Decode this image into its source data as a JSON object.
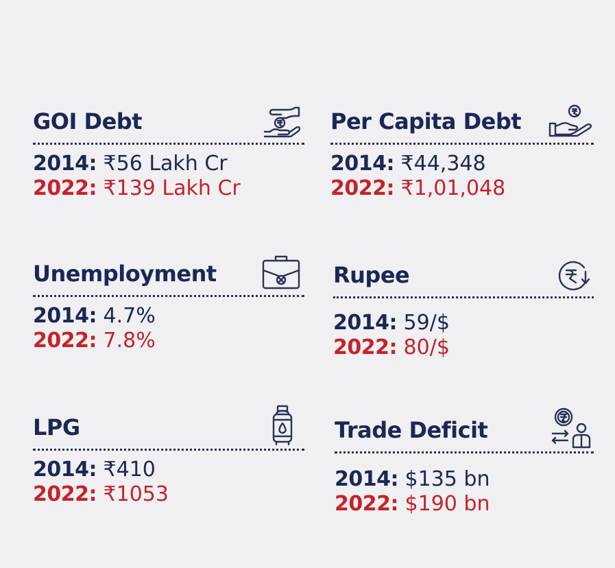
{
  "cards": [
    {
      "title": "GOI Debt",
      "icon": "hand-rupee-icon",
      "y2014_label": "2014:",
      "y2014_value": " ₹56 Lakh Cr",
      "y2022_label": "2022:",
      "y2022_value": " ₹139 Lakh Cr"
    },
    {
      "title": "Per Capita Debt",
      "icon": "hand-coin-icon",
      "y2014_label": "2014:",
      "y2014_value": " ₹44,348",
      "y2022_label": "2022:",
      "y2022_value": " ₹1,01,048"
    },
    {
      "title": "Unemployment",
      "icon": "briefcase-x-icon",
      "y2014_label": "2014:",
      "y2014_value": " 4.7%",
      "y2022_label": "2022:",
      "y2022_value": " 7.8%"
    },
    {
      "title": "Rupee",
      "icon": "rupee-down-icon",
      "y2014_label": "2014:",
      "y2014_value": " 59/$",
      "y2022_label": "2022:",
      "y2022_value": " 80/$"
    },
    {
      "title": "LPG",
      "icon": "gas-cylinder-icon",
      "y2014_label": "2014:",
      "y2014_value": " ₹410",
      "y2022_label": "2022:",
      "y2022_value": " ₹1053"
    },
    {
      "title": "Trade Deficit",
      "icon": "trade-exchange-icon",
      "y2014_label": "2014:",
      "y2014_value": " $135 bn",
      "y2022_label": "2022:",
      "y2022_value": " $190 bn"
    }
  ],
  "colors": {
    "background": "#f0f0f2",
    "navy": "#1c2757",
    "red": "#c4232b"
  }
}
